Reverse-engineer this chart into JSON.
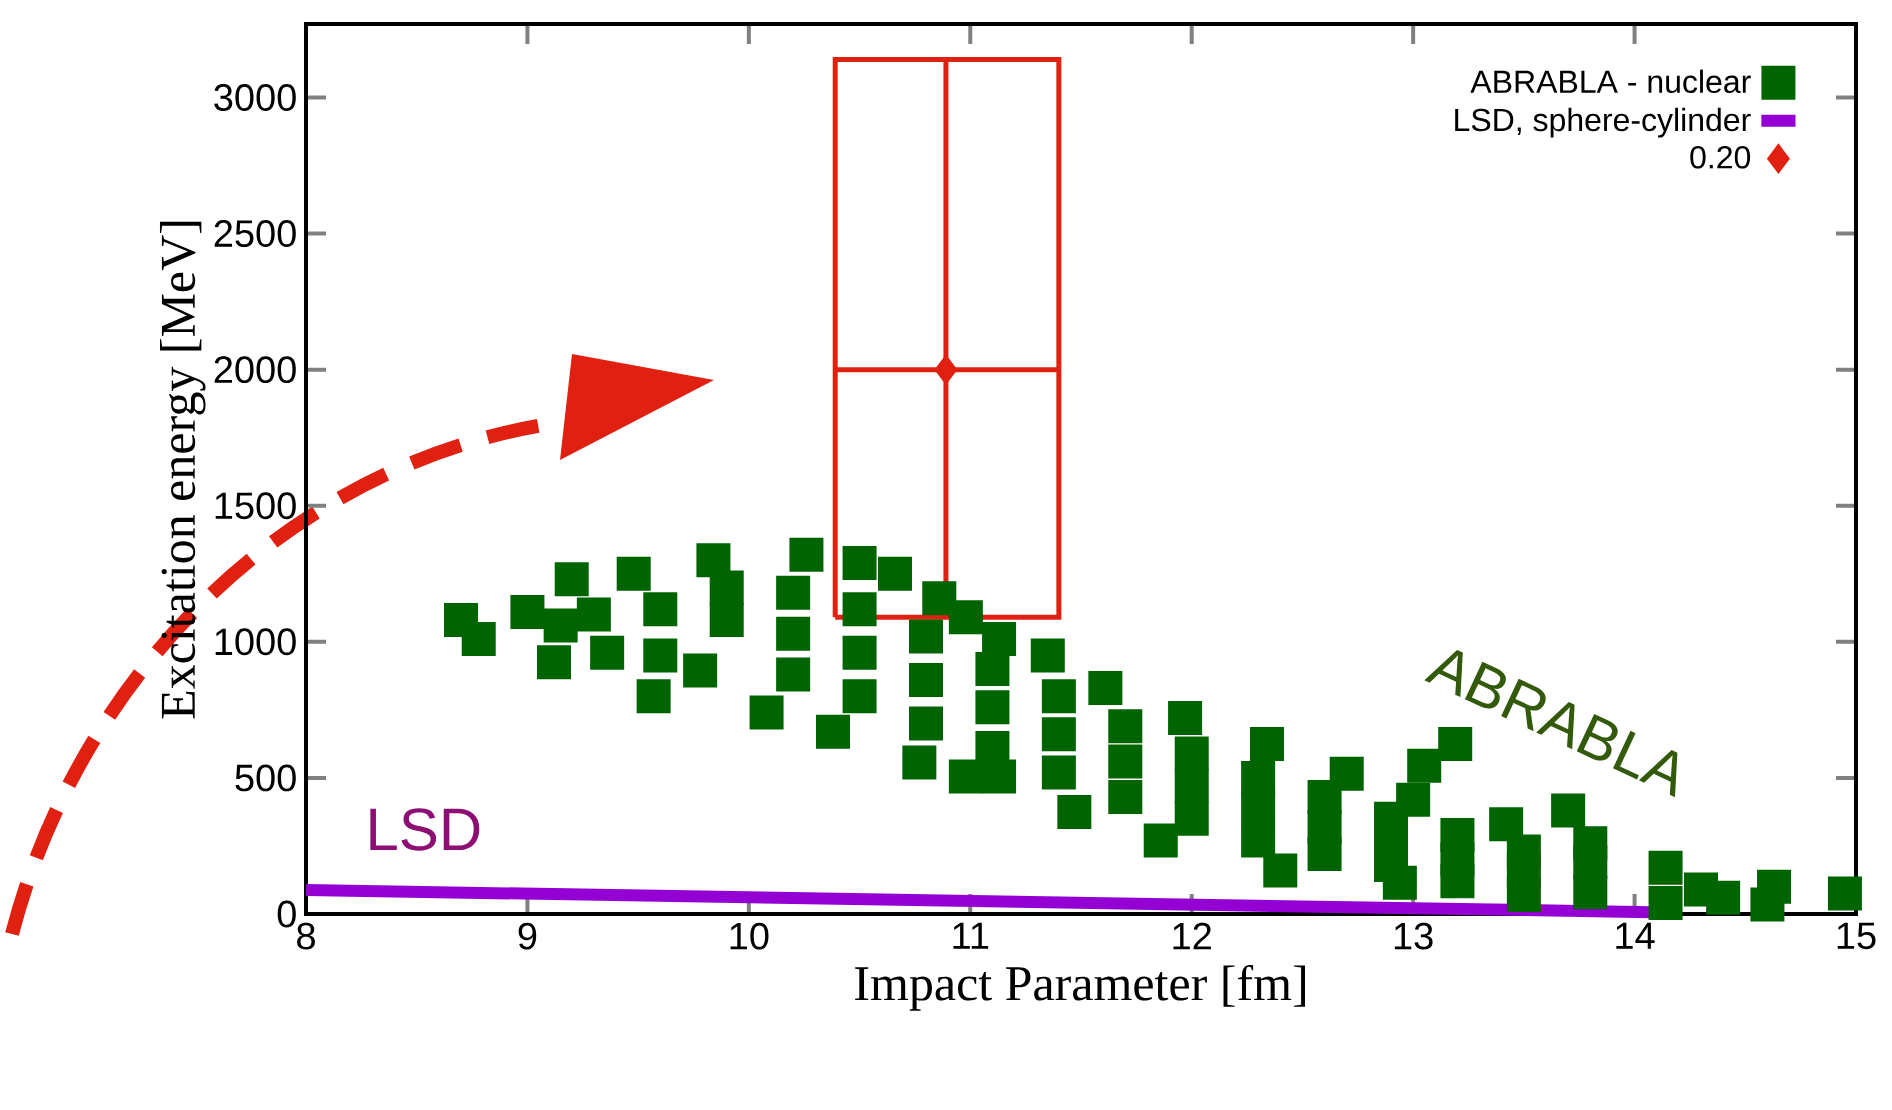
{
  "chart_data": {
    "type": "scatter",
    "xlabel": "Impact Parameter [fm]",
    "ylabel": "Excitation energy [MeV]",
    "xlim": [
      8,
      15
    ],
    "xticks": [
      8,
      9,
      10,
      11,
      12,
      13,
      14,
      15
    ],
    "ylim": [
      0,
      3270
    ],
    "yticks": [
      0,
      500,
      1000,
      1500,
      2000,
      2500,
      3000
    ],
    "legend": "top right",
    "grid": false,
    "series": [
      {
        "name": "ABRABLA - nuclear",
        "marker": "square",
        "color": "#006400",
        "x": [
          8.7,
          8.78,
          9.0,
          9.15,
          9.2,
          9.48,
          9.84,
          10.26,
          10.5,
          10.66,
          10.86,
          10.98,
          11.13,
          11.35,
          11.61,
          11.97,
          12.34,
          12.7,
          13.0,
          13.42,
          13.8,
          14.14,
          14.63,
          14.95,
          9.12,
          9.36,
          9.57,
          9.78,
          10.08,
          10.38,
          10.77,
          10.98,
          11.13,
          11.47,
          11.86,
          12.4,
          12.94,
          13.5,
          14.14,
          14.6,
          9.3,
          9.6,
          9.9,
          10.2,
          10.5,
          10.8,
          11.1,
          11.4,
          11.7,
          12.0,
          12.3,
          12.6,
          12.9,
          13.2,
          13.5,
          14.3,
          9.6,
          9.9,
          10.2,
          10.2,
          10.5,
          10.5,
          10.8,
          10.8,
          11.1,
          11.1,
          11.4,
          11.4,
          11.7,
          11.7,
          12.0,
          12.0,
          12.3,
          12.3,
          12.6,
          12.6,
          12.9,
          12.9,
          13.2,
          13.2,
          13.5,
          13.8,
          13.8,
          14.4,
          13.05,
          13.19,
          13.7
        ],
        "values": [
          1080,
          1010,
          1110,
          1060,
          1230,
          1250,
          1300,
          1320,
          1290,
          1250,
          1160,
          1090,
          1010,
          950,
          830,
          720,
          625,
          515,
          420,
          330,
          260,
          170,
          100,
          75,
          925,
          960,
          800,
          895,
          740,
          670,
          557,
          505,
          505,
          375,
          270,
          160,
          115,
          70,
          40,
          35,
          1100,
          1120,
          1080,
          1030,
          960,
          860,
          760,
          660,
          560,
          470,
          390,
          320,
          260,
          200,
          160,
          90,
          950,
          1200,
          880,
          1180,
          800,
          1120,
          700,
          1020,
          610,
          900,
          520,
          800,
          430,
          690,
          350,
          590,
          270,
          500,
          220,
          430,
          180,
          350,
          120,
          290,
          230,
          80,
          190,
          60,
          545,
          625,
          380
        ]
      },
      {
        "name": "LSD, sphere-cylinder",
        "type": "line",
        "marker": "none",
        "color": "#9400d3",
        "x": [
          8,
          14.2
        ],
        "values": [
          88,
          5
        ]
      },
      {
        "name": "0.20",
        "type": "scatter",
        "marker": "diamond",
        "color": "#e02010",
        "x": [
          10.89
        ],
        "values": [
          2000
        ],
        "errors": [
          [
            1090,
            3140
          ]
        ],
        "xerrors": [
          [
            10.39,
            11.4
          ]
        ]
      }
    ],
    "annotations": [
      "LSD",
      "ABRABLA"
    ]
  }
}
